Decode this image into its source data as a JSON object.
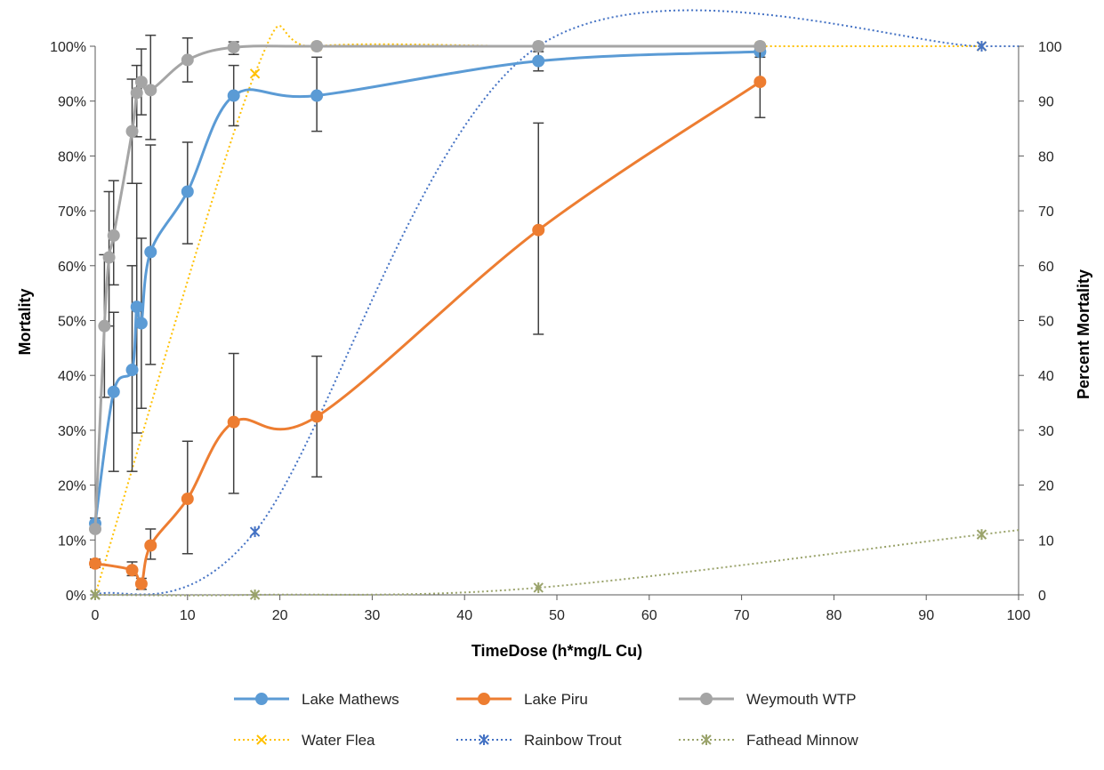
{
  "chart_data": {
    "type": "line",
    "xlabel": "TimeDose (h*mg/L Cu)",
    "ylabel": "Mortality",
    "y2label": "Percent Mortality",
    "xlim": [
      0,
      100
    ],
    "ylim": [
      0,
      1
    ],
    "y2lim": [
      0,
      100
    ],
    "x_ticks": [
      "0",
      "10",
      "20",
      "30",
      "40",
      "50",
      "60",
      "70",
      "80",
      "90",
      "100"
    ],
    "y_ticks": [
      "0%",
      "10%",
      "20%",
      "30%",
      "40%",
      "50%",
      "60%",
      "70%",
      "80%",
      "90%",
      "100%"
    ],
    "y2_ticks": [
      "0",
      "10",
      "20",
      "30",
      "40",
      "50",
      "60",
      "70",
      "80",
      "90",
      "100"
    ],
    "grid": false,
    "legend_position": "bottom",
    "series": [
      {
        "name": "Lake Mathews",
        "axis": "left",
        "style": "solid",
        "marker": "circle",
        "color": "#5b9bd5",
        "x": [
          0,
          2,
          4,
          4.5,
          5,
          6,
          10,
          15,
          24,
          48,
          72
        ],
        "y": [
          0.13,
          0.37,
          0.41,
          0.525,
          0.495,
          0.625,
          0.735,
          0.91,
          0.91,
          0.973,
          0.99
        ],
        "err_low": [
          0.12,
          0.225,
          0.225,
          0.295,
          0.34,
          0.42,
          0.64,
          0.855,
          0.845,
          0.955,
          0.98
        ],
        "err_high": [
          0.14,
          0.515,
          0.6,
          0.75,
          0.65,
          0.82,
          0.825,
          0.965,
          0.98,
          0.99,
          1.0
        ]
      },
      {
        "name": "Lake Piru",
        "axis": "left",
        "style": "solid",
        "marker": "circle",
        "color": "#ed7d31",
        "x": [
          0,
          4,
          5,
          6,
          10,
          15,
          24,
          48,
          72
        ],
        "y": [
          0.057,
          0.045,
          0.02,
          0.09,
          0.175,
          0.315,
          0.325,
          0.665,
          0.935
        ],
        "err_low": [
          0.05,
          0.035,
          0.01,
          0.065,
          0.075,
          0.185,
          0.215,
          0.475,
          0.87
        ],
        "err_high": [
          0.065,
          0.06,
          0.03,
          0.12,
          0.28,
          0.44,
          0.435,
          0.86,
          1.0
        ]
      },
      {
        "name": "Weymouth WTP",
        "axis": "left",
        "style": "solid",
        "marker": "circle",
        "color": "#a5a5a5",
        "x": [
          0,
          1,
          1.5,
          2,
          4,
          4.5,
          5,
          6,
          10,
          15,
          24,
          48,
          72
        ],
        "y": [
          0.12,
          0.49,
          0.615,
          0.655,
          0.845,
          0.915,
          0.935,
          0.92,
          0.975,
          0.998,
          1.0,
          1.0,
          1.0
        ],
        "err_low": [
          0.115,
          0.36,
          0.49,
          0.565,
          0.75,
          0.835,
          0.875,
          0.83,
          0.935,
          0.985,
          1.0,
          1.0,
          1.0
        ],
        "err_high": [
          0.125,
          0.62,
          0.735,
          0.755,
          0.94,
          0.965,
          0.995,
          1.02,
          1.015,
          1.008,
          1.0,
          1.0,
          1.0
        ]
      },
      {
        "name": "Water Flea",
        "axis": "right",
        "style": "dotted",
        "marker": "x",
        "color": "#ffc000",
        "x": [
          0,
          17.3,
          24,
          48,
          72,
          96
        ],
        "y": [
          0,
          95,
          100,
          100,
          100,
          100
        ]
      },
      {
        "name": "Rainbow Trout",
        "axis": "right",
        "style": "dotted",
        "marker": "asterisk",
        "color": "#4472c4",
        "x": [
          0,
          17.3,
          48,
          96
        ],
        "y": [
          0,
          11.5,
          100,
          100
        ]
      },
      {
        "name": "Fathead Minnow",
        "axis": "right",
        "style": "dotted",
        "marker": "asterisk",
        "color": "#9aa36b",
        "x": [
          0,
          17.3,
          48,
          96
        ],
        "y": [
          0,
          0,
          1.3,
          11
        ]
      }
    ]
  }
}
